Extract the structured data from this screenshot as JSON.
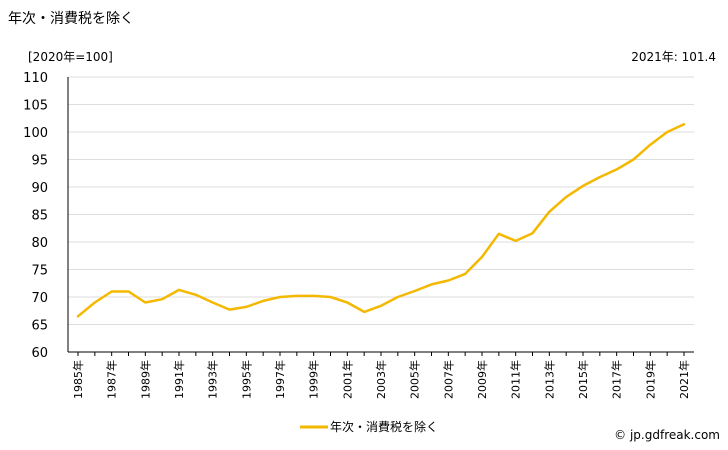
{
  "header": {
    "title": "年次・消費税を除く",
    "unit_label": "[2020年=100]",
    "latest_label": "2021年: 101.4"
  },
  "footer": {
    "source": "© jp.gdfreak.com"
  },
  "chart_data": {
    "type": "line",
    "title": "",
    "xlabel": "",
    "ylabel": "",
    "ylim": [
      60,
      110
    ],
    "yticks": [
      60,
      65,
      70,
      75,
      80,
      85,
      90,
      95,
      100,
      105,
      110
    ],
    "grid": "horizontal",
    "legend_position": "bottom",
    "x": [
      1985,
      1986,
      1987,
      1988,
      1989,
      1990,
      1991,
      1992,
      1993,
      1994,
      1995,
      1996,
      1997,
      1998,
      1999,
      2000,
      2001,
      2002,
      2003,
      2004,
      2005,
      2006,
      2007,
      2008,
      2009,
      2010,
      2011,
      2012,
      2013,
      2014,
      2015,
      2016,
      2017,
      2018,
      2019,
      2020,
      2021
    ],
    "xtick_labels": [
      "1985年",
      "1987年",
      "1989年",
      "1991年",
      "1993年",
      "1995年",
      "1997年",
      "1999年",
      "2001年",
      "2003年",
      "2005年",
      "2007年",
      "2009年",
      "2011年",
      "2013年",
      "2015年",
      "2017年",
      "2019年",
      "2021年"
    ],
    "series": [
      {
        "name": "年次・消費税を除く",
        "color": "#f5b800",
        "values": [
          66.5,
          69.0,
          71.0,
          71.0,
          69.0,
          69.6,
          71.3,
          70.4,
          69.0,
          67.7,
          68.2,
          69.3,
          70.0,
          70.2,
          70.2,
          70.0,
          69.0,
          67.3,
          68.4,
          70.0,
          71.1,
          72.3,
          73.0,
          74.2,
          77.3,
          81.5,
          80.2,
          81.6,
          85.5,
          88.2,
          90.2,
          91.8,
          93.2,
          95.0,
          97.7,
          100.0,
          101.4
        ]
      }
    ]
  }
}
